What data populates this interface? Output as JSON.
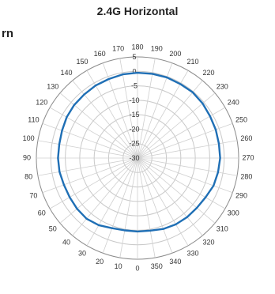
{
  "chart_data": {
    "type": "line",
    "subtype": "polar",
    "title": "2.4G Horizontal",
    "clipped_text": "rn",
    "angle_tick_labels": [
      "0",
      "10",
      "20",
      "30",
      "40",
      "50",
      "60",
      "70",
      "80",
      "90",
      "100",
      "110",
      "120",
      "130",
      "140",
      "150",
      "160",
      "170",
      "180",
      "190",
      "200",
      "210",
      "220",
      "230",
      "240",
      "250",
      "260",
      "270",
      "280",
      "290",
      "300",
      "310",
      "320",
      "330",
      "340",
      "350"
    ],
    "radial_tick_labels": [
      "5",
      "0",
      "-5",
      "-10",
      "-15",
      "-20",
      "-25",
      "-30"
    ],
    "rlim": [
      -30,
      5
    ],
    "angle_direction": "clockwise",
    "angle_zero_position": "bottom",
    "series": [
      {
        "color": "#1f6fb5",
        "angles": [
          0,
          10,
          20,
          30,
          40,
          50,
          60,
          70,
          80,
          90,
          100,
          110,
          120,
          130,
          140,
          150,
          160,
          170,
          180,
          190,
          200,
          210,
          220,
          230,
          240,
          250,
          260,
          270,
          280,
          290,
          300,
          310,
          320,
          330,
          340,
          350
        ],
        "values": [
          -4.6,
          -4.6,
          -4.2,
          -3.2,
          -2.6,
          -2.7,
          -2.9,
          -2.9,
          -2.6,
          -2.5,
          -2.5,
          -2.2,
          -1.7,
          -1.4,
          -1.3,
          -1.0,
          -0.9,
          -0.6,
          -0.5,
          -0.4,
          -0.3,
          -0.4,
          -0.3,
          -0.6,
          -1.0,
          -1.2,
          -1.4,
          -1.4,
          -1.7,
          -2.0,
          -2.8,
          -3.2,
          -3.3,
          -3.5,
          -3.9,
          -4.5
        ]
      }
    ]
  }
}
